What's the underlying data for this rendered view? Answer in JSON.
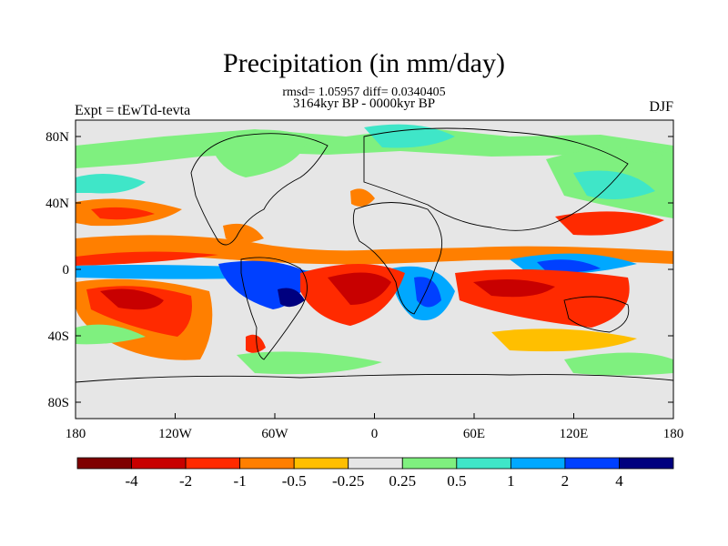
{
  "title": "Precipitation (in mm/day)",
  "stats_line": "rmsd= 1.05957 diff= 0.0340405",
  "period_line": "3164kyr BP - 0000kyr BP",
  "left_label": "Expt = tEwTd-tevta",
  "right_label": "DJF",
  "y_ticks": [
    "80N",
    "40N",
    "0",
    "40S",
    "80S"
  ],
  "x_ticks": [
    "180",
    "120W",
    "60W",
    "0",
    "60E",
    "120E",
    "180"
  ],
  "colorbar": {
    "labels": [
      "-4",
      "-2",
      "-1",
      "-0.5",
      "-0.25",
      "0.25",
      "0.5",
      "1",
      "2",
      "4"
    ],
    "colors": [
      "#7f0000",
      "#c80000",
      "#ff2a00",
      "#ff7f00",
      "#ffbf00",
      "#e6e6e6",
      "#7ff07f",
      "#3fe6c8",
      "#00a8ff",
      "#0040ff",
      "#00007f"
    ]
  }
}
